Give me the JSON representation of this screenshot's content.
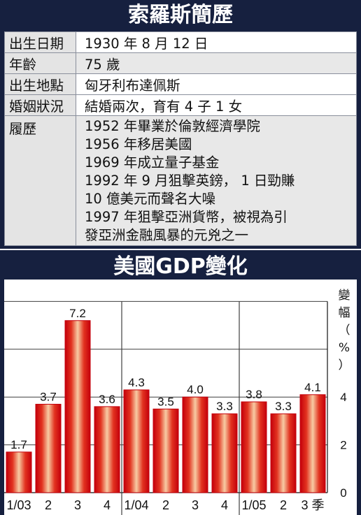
{
  "bio": {
    "title": "索羅斯簡歷",
    "birth_date_label": "出生日期",
    "birth_date": "1930 年 8 月 12 日",
    "age_label": "年齡",
    "age": "75 歲",
    "birthplace_label": "出生地點",
    "birthplace": "匈牙利布達佩斯",
    "marital_label": "婚姻狀況",
    "marital": "結婚兩次，育有 4 子 1 女",
    "resume_label": "履歷",
    "resume_lines": [
      "1952 年畢業於倫敦經濟學院",
      "1956 年移居美國",
      "1969 年成立量子基金",
      "1992 年 9 月狙擊英鎊， 1 日勁賺",
      "10 億美元而聲名大噪",
      "1997 年狙擊亞洲貨幣，被視為引",
      "發亞洲金融風暴的元兇之一"
    ]
  },
  "chart_title": "美國GDP變化",
  "colors": {
    "panel_bg": "#16203f",
    "bar_dark": "#c4000b",
    "bar_light": "#f7cba3",
    "grid": "#3f3f3f"
  },
  "chart_data": {
    "type": "bar",
    "title": "美國GDP變化",
    "ylabel": "變幅（%）",
    "categories": [
      "1/03",
      "2",
      "3",
      "4",
      "1/04",
      "2",
      "3",
      "4",
      "1/05",
      "2",
      "3 季"
    ],
    "values": [
      1.7,
      3.7,
      7.2,
      3.6,
      4.3,
      3.5,
      4.0,
      3.3,
      3.8,
      3.3,
      4.1
    ],
    "value_labels": [
      "1.7",
      "3.7",
      "7.2",
      "3.6",
      "4.3",
      "3.5",
      "4.0",
      "3.3",
      "3.8",
      "3.3",
      "4.1"
    ],
    "ylim": [
      0,
      8
    ],
    "yticks": [
      {
        "value": 0,
        "label": "0"
      },
      {
        "value": 2,
        "label": "2"
      },
      {
        "value": 4,
        "label": "4"
      }
    ],
    "gridlines": [
      2,
      4,
      6,
      8
    ],
    "grid": true,
    "year_separators_after": [
      3,
      7
    ],
    "legend": "none"
  }
}
